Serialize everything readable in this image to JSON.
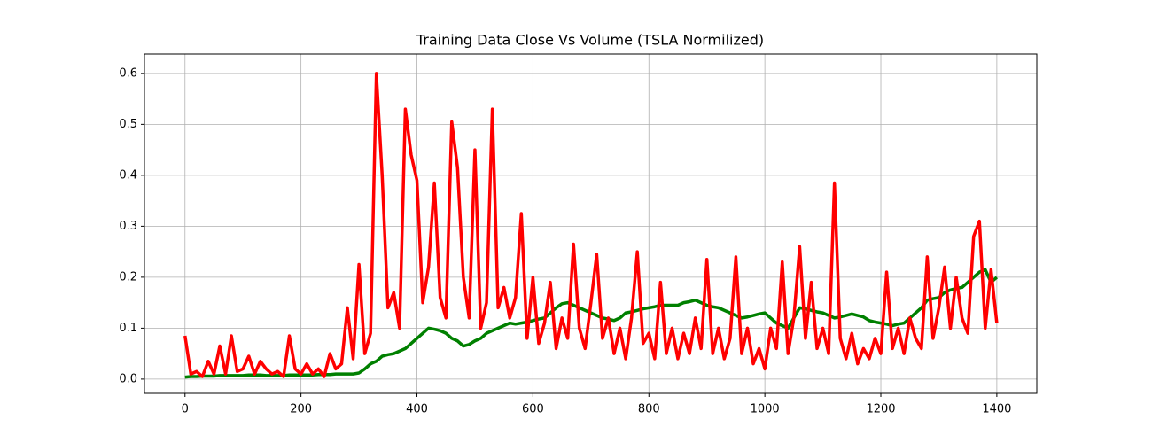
{
  "chart_data": {
    "type": "line",
    "title": "Training Data Close Vs Volume (TSLA Normilized)",
    "x": [
      0,
      10,
      20,
      30,
      40,
      50,
      60,
      70,
      80,
      90,
      100,
      110,
      120,
      130,
      140,
      150,
      160,
      170,
      180,
      190,
      200,
      210,
      220,
      230,
      240,
      250,
      260,
      270,
      280,
      290,
      300,
      310,
      320,
      330,
      340,
      350,
      360,
      370,
      380,
      390,
      400,
      410,
      420,
      430,
      440,
      450,
      460,
      470,
      480,
      490,
      500,
      510,
      520,
      530,
      540,
      550,
      560,
      570,
      580,
      590,
      600,
      610,
      620,
      630,
      640,
      650,
      660,
      670,
      680,
      690,
      700,
      710,
      720,
      730,
      740,
      750,
      760,
      770,
      780,
      790,
      800,
      810,
      820,
      830,
      840,
      850,
      860,
      870,
      880,
      890,
      900,
      910,
      920,
      930,
      940,
      950,
      960,
      970,
      980,
      990,
      1000,
      1010,
      1020,
      1030,
      1040,
      1050,
      1060,
      1070,
      1080,
      1090,
      1100,
      1110,
      1120,
      1130,
      1140,
      1150,
      1160,
      1170,
      1180,
      1190,
      1200,
      1210,
      1220,
      1230,
      1240,
      1250,
      1260,
      1270,
      1280,
      1290,
      1300,
      1310,
      1320,
      1330,
      1340,
      1350,
      1360,
      1370,
      1380,
      1390,
      1400
    ],
    "series": [
      {
        "color": "#008000",
        "values": [
          0.004,
          0.005,
          0.005,
          0.006,
          0.006,
          0.006,
          0.007,
          0.007,
          0.007,
          0.007,
          0.007,
          0.008,
          0.008,
          0.008,
          0.007,
          0.007,
          0.007,
          0.007,
          0.008,
          0.008,
          0.008,
          0.008,
          0.008,
          0.009,
          0.009,
          0.009,
          0.01,
          0.01,
          0.01,
          0.01,
          0.012,
          0.02,
          0.03,
          0.035,
          0.045,
          0.048,
          0.05,
          0.055,
          0.06,
          0.07,
          0.08,
          0.09,
          0.1,
          0.098,
          0.095,
          0.09,
          0.08,
          0.075,
          0.065,
          0.068,
          0.075,
          0.08,
          0.09,
          0.095,
          0.1,
          0.105,
          0.11,
          0.108,
          0.11,
          0.112,
          0.115,
          0.118,
          0.12,
          0.13,
          0.14,
          0.148,
          0.15,
          0.145,
          0.14,
          0.135,
          0.13,
          0.125,
          0.12,
          0.118,
          0.115,
          0.12,
          0.13,
          0.132,
          0.135,
          0.138,
          0.14,
          0.142,
          0.145,
          0.145,
          0.145,
          0.145,
          0.15,
          0.152,
          0.155,
          0.15,
          0.145,
          0.142,
          0.14,
          0.135,
          0.13,
          0.125,
          0.12,
          0.122,
          0.125,
          0.128,
          0.13,
          0.12,
          0.11,
          0.105,
          0.1,
          0.12,
          0.14,
          0.138,
          0.135,
          0.132,
          0.13,
          0.125,
          0.12,
          0.122,
          0.125,
          0.128,
          0.125,
          0.122,
          0.115,
          0.112,
          0.11,
          0.108,
          0.105,
          0.108,
          0.11,
          0.12,
          0.13,
          0.14,
          0.155,
          0.158,
          0.16,
          0.17,
          0.175,
          0.178,
          0.18,
          0.19,
          0.2,
          0.21,
          0.215,
          0.19,
          0.2
        ]
      },
      {
        "color": "#ff0000",
        "values": [
          0.085,
          0.01,
          0.015,
          0.005,
          0.035,
          0.01,
          0.065,
          0.01,
          0.085,
          0.015,
          0.02,
          0.045,
          0.01,
          0.035,
          0.02,
          0.01,
          0.015,
          0.005,
          0.085,
          0.02,
          0.01,
          0.03,
          0.01,
          0.02,
          0.005,
          0.05,
          0.02,
          0.03,
          0.14,
          0.04,
          0.225,
          0.05,
          0.09,
          0.6,
          0.4,
          0.14,
          0.17,
          0.1,
          0.53,
          0.44,
          0.39,
          0.15,
          0.22,
          0.385,
          0.16,
          0.12,
          0.505,
          0.415,
          0.2,
          0.12,
          0.45,
          0.1,
          0.15,
          0.53,
          0.14,
          0.18,
          0.12,
          0.16,
          0.325,
          0.08,
          0.2,
          0.07,
          0.11,
          0.19,
          0.06,
          0.12,
          0.08,
          0.265,
          0.1,
          0.06,
          0.15,
          0.245,
          0.08,
          0.12,
          0.05,
          0.1,
          0.04,
          0.12,
          0.25,
          0.07,
          0.09,
          0.04,
          0.19,
          0.05,
          0.1,
          0.04,
          0.09,
          0.05,
          0.12,
          0.06,
          0.235,
          0.05,
          0.1,
          0.04,
          0.08,
          0.24,
          0.05,
          0.1,
          0.03,
          0.06,
          0.02,
          0.1,
          0.06,
          0.23,
          0.05,
          0.12,
          0.26,
          0.08,
          0.19,
          0.06,
          0.1,
          0.05,
          0.385,
          0.08,
          0.04,
          0.09,
          0.03,
          0.06,
          0.04,
          0.08,
          0.05,
          0.21,
          0.06,
          0.1,
          0.05,
          0.12,
          0.08,
          0.06,
          0.24,
          0.08,
          0.14,
          0.22,
          0.1,
          0.2,
          0.12,
          0.09,
          0.28,
          0.31,
          0.1,
          0.215,
          0.11
        ]
      }
    ],
    "xlim": [
      -69.95,
      1468.95
    ],
    "xticks": [
      0,
      200,
      400,
      600,
      800,
      1000,
      1200,
      1400
    ],
    "ylim": [
      -0.028,
      0.638
    ],
    "yticks": [
      {
        "value": 0,
        "label": "0.0"
      },
      0.1,
      0.2,
      0.3,
      0.4,
      0.5,
      0.6
    ],
    "grid": true
  }
}
